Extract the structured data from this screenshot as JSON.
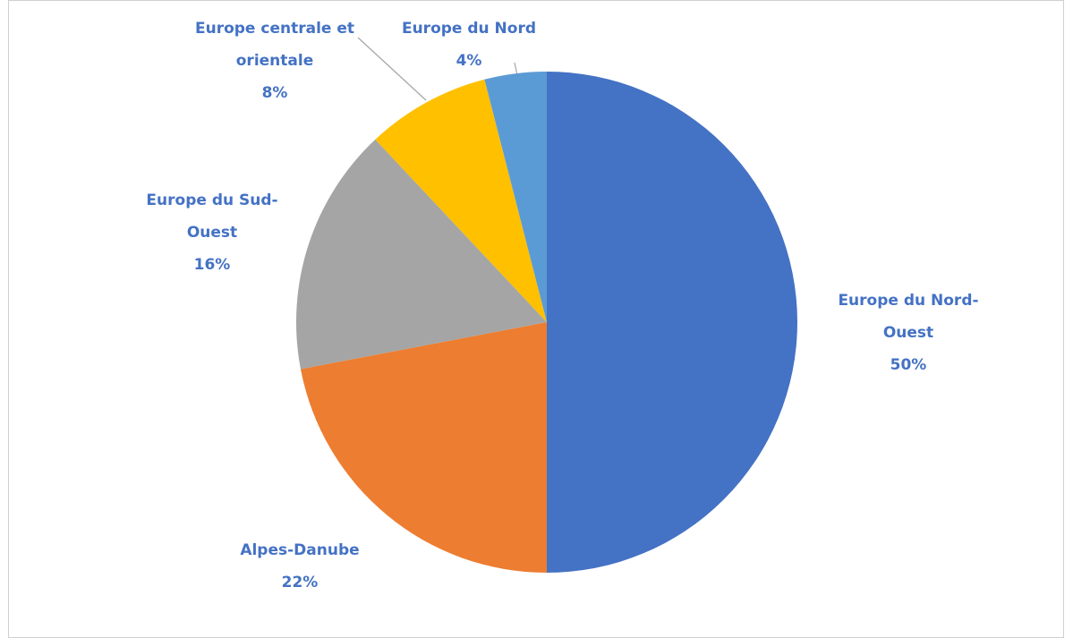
{
  "chart_data": {
    "type": "pie",
    "categories": [
      "Europe du Nord-Ouest",
      "Alpes-Danube",
      "Europe du Sud-Ouest",
      "Europe centrale et orientale",
      "Europe du Nord"
    ],
    "values": [
      50,
      22,
      16,
      8,
      4
    ],
    "value_labels": [
      "50%",
      "22%",
      "16%",
      "8%",
      "4%"
    ],
    "colors": [
      "#4472c4",
      "#ed7d31",
      "#a5a5a5",
      "#ffc000",
      "#5b9bd5"
    ]
  }
}
